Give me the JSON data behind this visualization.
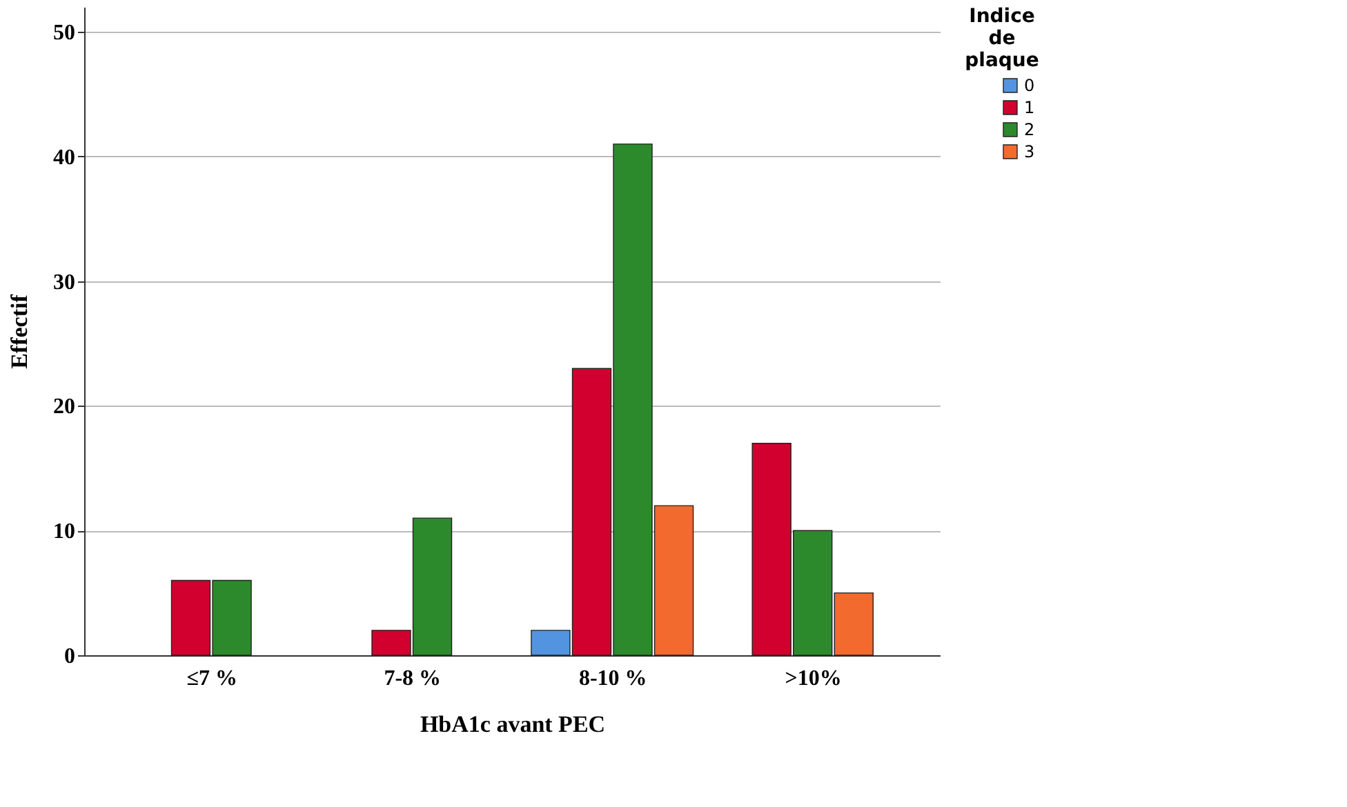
{
  "chart_data": {
    "type": "bar",
    "xlabel": "HbA1c avant PEC",
    "ylabel": "Effectif",
    "legend_title": "Indice de plaque",
    "categories": [
      "≤7 %",
      "7-8 %",
      "8-10 %",
      ">10%"
    ],
    "series": [
      {
        "name": "0",
        "color": "#5394e0",
        "values": [
          null,
          null,
          2,
          null
        ]
      },
      {
        "name": "1",
        "color": "#d2002e",
        "values": [
          6,
          2,
          23,
          17
        ]
      },
      {
        "name": "2",
        "color": "#2c8a2c",
        "values": [
          6,
          11,
          41,
          10
        ]
      },
      {
        "name": "3",
        "color": "#f26a2e",
        "values": [
          null,
          null,
          12,
          5
        ]
      }
    ],
    "ylim": [
      0,
      52
    ],
    "yticks": [
      0,
      10,
      20,
      30,
      40,
      50
    ],
    "grid": "y",
    "legend": "top right"
  }
}
